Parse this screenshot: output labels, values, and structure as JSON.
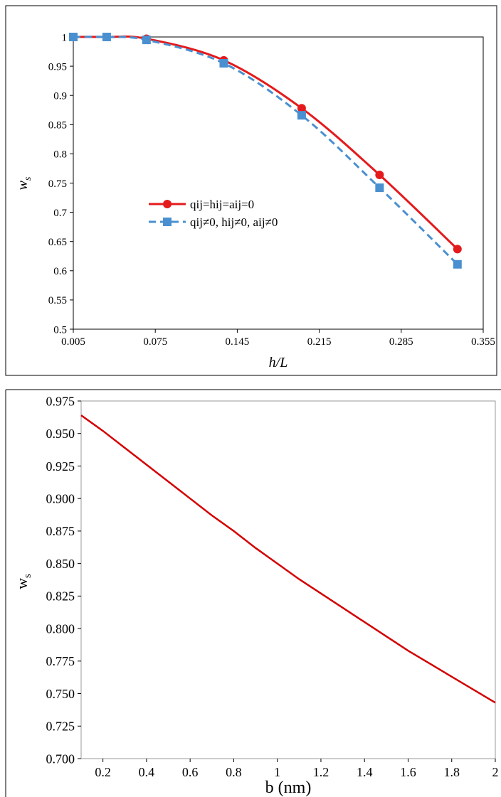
{
  "chart_data": [
    {
      "type": "line",
      "xlabel": "h/L",
      "ylabel_main": "w",
      "ylabel_sub": "s",
      "xlim": [
        0.005,
        0.355
      ],
      "ylim": [
        0.5,
        1.0
      ],
      "xticks": [
        "0.005",
        "0.075",
        "0.145",
        "0.215",
        "0.285",
        "0.355"
      ],
      "yticks": [
        "0.5",
        "0.55",
        "0.6",
        "0.65",
        "0.7",
        "0.75",
        "0.8",
        "0.85",
        "0.9",
        "0.95",
        "1"
      ],
      "legend_position": "center-left",
      "grid": false,
      "series": [
        {
          "name": "qij=hij=aij=0",
          "color": "#e41a1c",
          "line": "solid",
          "marker": "circle",
          "x": [
            0.005,
            0.0335,
            0.0675,
            0.1335,
            0.2,
            0.2665,
            0.333
          ],
          "y": [
            1.0,
            1.0,
            0.997,
            0.96,
            0.878,
            0.764,
            0.637
          ]
        },
        {
          "name": "qij≠0, hij≠0, aij≠0",
          "color": "#4a90d0",
          "line": "dashed",
          "marker": "square",
          "x": [
            0.005,
            0.0335,
            0.0675,
            0.1335,
            0.2,
            0.2665,
            0.333
          ],
          "y": [
            1.0,
            1.0,
            0.995,
            0.955,
            0.866,
            0.742,
            0.611
          ]
        }
      ]
    },
    {
      "type": "line",
      "xlabel": "b (nm)",
      "ylabel_main": "w",
      "ylabel_sub": "s",
      "xlim": [
        0.1,
        2.0
      ],
      "ylim": [
        0.7,
        0.975
      ],
      "xticks": [
        "0.2",
        "0.4",
        "0.6",
        "0.8",
        "1",
        "1.2",
        "1.4",
        "1.6",
        "1.8",
        "2"
      ],
      "yticks": [
        "0.700",
        "0.725",
        "0.750",
        "0.775",
        "0.800",
        "0.825",
        "0.850",
        "0.875",
        "0.900",
        "0.925",
        "0.950",
        "0.975"
      ],
      "grid": false,
      "series": [
        {
          "color": "#d40000",
          "x": [
            0.1,
            0.2,
            0.3,
            0.4,
            0.5,
            0.6,
            0.7,
            0.8,
            0.9,
            1.0,
            1.1,
            1.2,
            1.3,
            1.4,
            1.5,
            1.6,
            1.7,
            1.8,
            1.9,
            2.0
          ],
          "y": [
            0.964,
            0.952,
            0.939,
            0.926,
            0.913,
            0.9,
            0.887,
            0.875,
            0.862,
            0.85,
            0.838,
            0.827,
            0.816,
            0.805,
            0.794,
            0.783,
            0.773,
            0.763,
            0.753,
            0.743
          ]
        }
      ]
    }
  ]
}
